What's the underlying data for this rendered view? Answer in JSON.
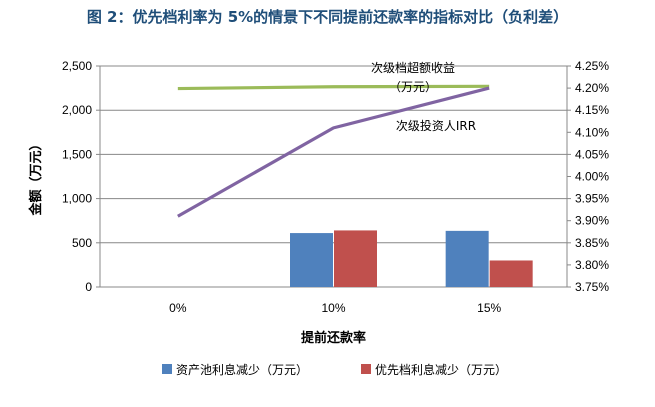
{
  "title": "图 2：优先档利率为 5%的情景下不同提前还款率的指标对比（负利差）",
  "chart_data": {
    "type": "bar",
    "categories": [
      "0%",
      "10%",
      "15%"
    ],
    "xlabel": "提前还款率",
    "ylabel": "金额（万元）",
    "ylim": [
      0,
      2500
    ],
    "yticks": [
      "0",
      "500",
      "1,000",
      "1,500",
      "2,000",
      "2,500"
    ],
    "y2lim": [
      3.75,
      4.25
    ],
    "y2ticks": [
      "3.75%",
      "3.80%",
      "3.85%",
      "3.90%",
      "3.95%",
      "4.00%",
      "4.05%",
      "4.10%",
      "4.15%",
      "4.20%",
      "4.25%"
    ],
    "grid": true,
    "legend_position": "bottom",
    "series": [
      {
        "name": "资产池利息减少（万元）",
        "type": "bar",
        "axis": "left",
        "color": "#4f81bd",
        "values": [
          0,
          610,
          635
        ]
      },
      {
        "name": "优先档利息减少（万元）",
        "type": "bar",
        "axis": "left",
        "color": "#c0504d",
        "values": [
          0,
          640,
          300
        ]
      },
      {
        "name": "次级档超额收益（万元）",
        "type": "line",
        "axis": "left",
        "color": "#9bbb59",
        "values": [
          2245,
          2265,
          2270
        ]
      },
      {
        "name": "次级投资人IRR",
        "type": "line",
        "axis": "right",
        "color": "#8064a2",
        "values": [
          3.91,
          4.11,
          4.2
        ]
      }
    ],
    "annotations": {
      "excess_line1": "次级档超额收益",
      "excess_line2": "（万元）",
      "irr": "次级投资人IRR"
    }
  }
}
